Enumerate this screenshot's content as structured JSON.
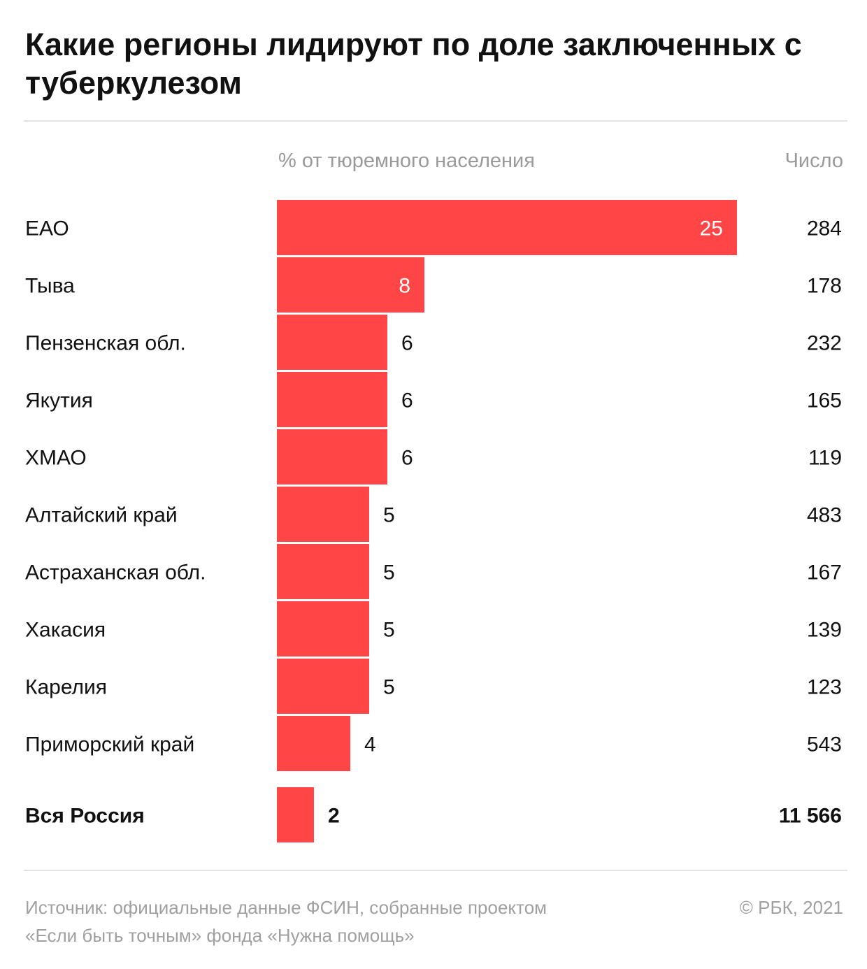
{
  "title": "Какие регионы лидируют по доле заключенных с  туберкулезом",
  "headers": {
    "pct": "% от тюремного населения",
    "count": "Число"
  },
  "colors": {
    "bar": "#ff4545",
    "text": "#111111",
    "label_inside": "#ffffff",
    "muted": "#9a9a9a"
  },
  "chart_data": {
    "type": "bar",
    "orientation": "horizontal",
    "categories": [
      "ЕАО",
      "Тыва",
      "Пензенская обл.",
      "Якутия",
      "ХМАО",
      "Алтайский край",
      "Астраханская обл.",
      "Хакасия",
      "Карелия",
      "Приморский край"
    ],
    "values": [
      25,
      8,
      6,
      6,
      6,
      5,
      5,
      5,
      5,
      4
    ],
    "counts": [
      "284",
      "178",
      "232",
      "165",
      "119",
      "483",
      "167",
      "139",
      "123",
      "543"
    ],
    "total": {
      "label": "Вся Россия",
      "value": 2,
      "count": "11 566"
    },
    "xlim": [
      0,
      25
    ],
    "grid": false,
    "legend": "none"
  },
  "footer": {
    "source_line1": "Источник:  официальные данные ФСИН, собранные проектом",
    "source_line2": "«Если быть точным» фонда «Нужна помощь»",
    "copyright": "©  РБК, 2021"
  }
}
